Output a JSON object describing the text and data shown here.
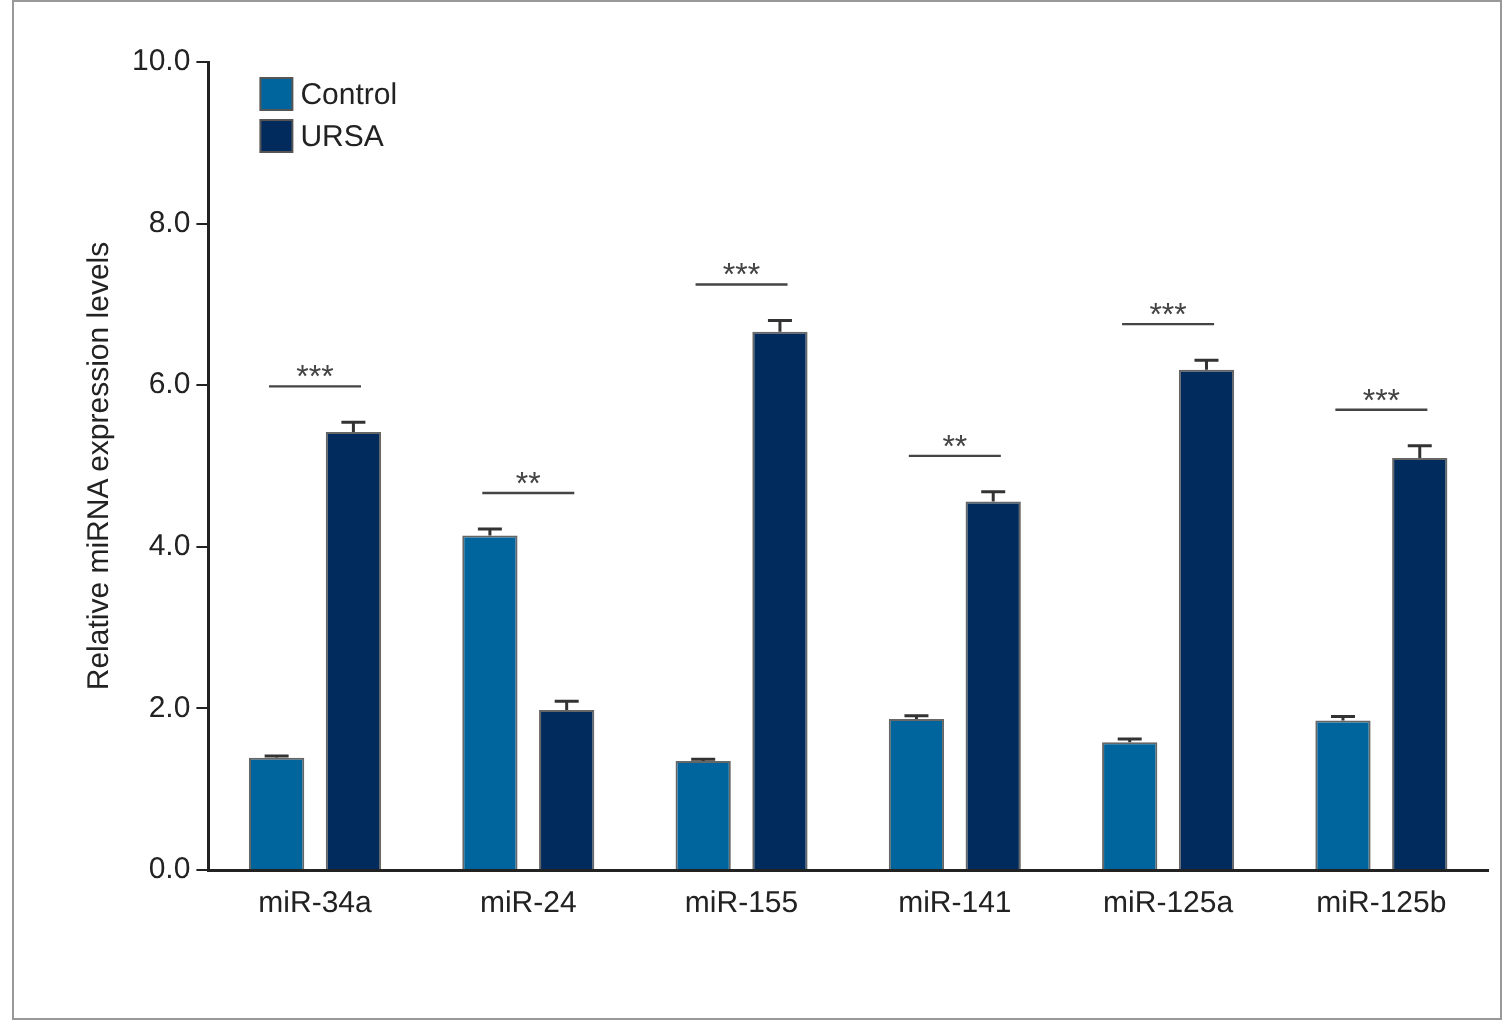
{
  "chart_data": {
    "type": "bar",
    "ylabel": "Relative miRNA expression levels",
    "categories": [
      "miR-34a",
      "miR-24",
      "miR-155",
      "miR-141",
      "miR-125a",
      "miR-125b"
    ],
    "series": [
      {
        "name": "Control",
        "color": "#00659c",
        "values": [
          1.39,
          4.14,
          1.35,
          1.87,
          1.58,
          1.85
        ],
        "errors": [
          0.02,
          0.08,
          0.02,
          0.04,
          0.04,
          0.05
        ]
      },
      {
        "name": "URSA",
        "color": "#002b5c",
        "values": [
          5.42,
          1.98,
          6.66,
          4.56,
          6.19,
          5.1
        ],
        "errors": [
          0.12,
          0.11,
          0.14,
          0.12,
          0.12,
          0.15
        ]
      }
    ],
    "ylim": [
      0,
      10
    ],
    "yticks": [
      {
        "value": 0,
        "label": "0.0"
      },
      {
        "value": 2,
        "label": "2.0"
      },
      {
        "value": 4,
        "label": "4.0"
      },
      {
        "value": 6,
        "label": "6.0"
      },
      {
        "value": 8,
        "label": "8.0"
      },
      {
        "value": 10,
        "label": "10.0"
      }
    ],
    "annotations": [
      "***",
      "**",
      "***",
      "**",
      "***",
      "***"
    ],
    "grid": false,
    "legend": "top left"
  }
}
